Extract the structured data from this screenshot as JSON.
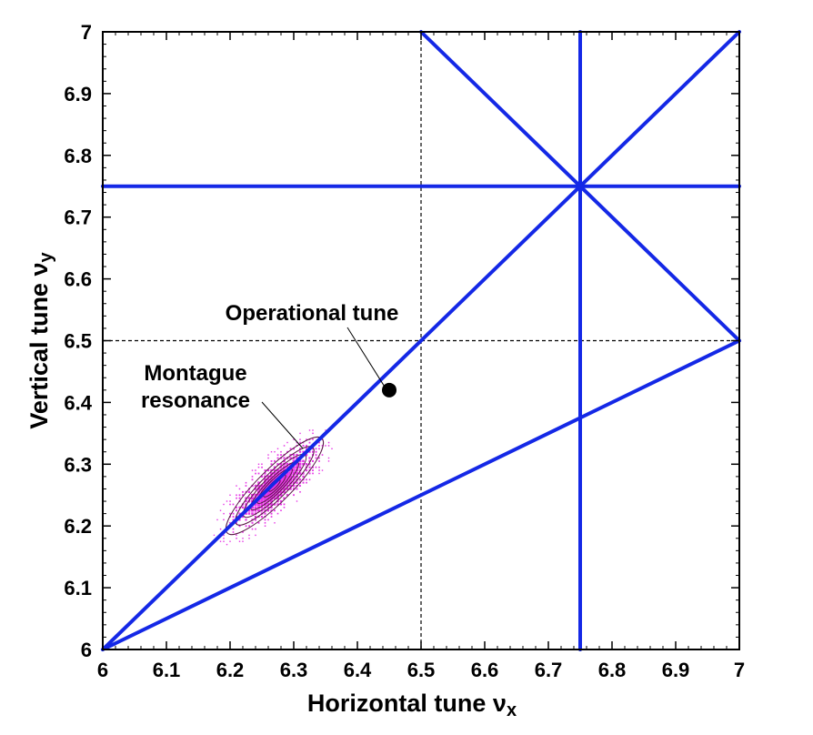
{
  "chart_data": {
    "type": "scatter",
    "title": "",
    "xlabel": "Horizontal tune ν",
    "xlabel_sub": "x",
    "ylabel": "Vertical tune ν",
    "ylabel_sub": "y",
    "xlim": [
      6,
      7
    ],
    "ylim": [
      6,
      7
    ],
    "xticks": [
      "6",
      "6.1",
      "6.2",
      "6.3",
      "6.4",
      "6.5",
      "6.6",
      "6.7",
      "6.8",
      "6.9",
      "7"
    ],
    "yticks": [
      "6",
      "6.1",
      "6.2",
      "6.3",
      "6.4",
      "6.5",
      "6.6",
      "6.7",
      "6.8",
      "6.9",
      "7"
    ],
    "grid": false,
    "colors": {
      "resonance": "#1428e6",
      "distribution": "#e633e6",
      "contour": "#5a1846",
      "dashed": "#000000"
    },
    "resonance_lines": [
      {
        "x": [
          6,
          7
        ],
        "y": [
          6,
          7
        ]
      },
      {
        "x": [
          6,
          7
        ],
        "y": [
          6,
          6.5
        ]
      },
      {
        "x": [
          6.5,
          7
        ],
        "y": [
          7,
          6.5
        ]
      },
      {
        "x": [
          6.75,
          6.75
        ],
        "y": [
          6,
          7
        ]
      },
      {
        "x": [
          6,
          7
        ],
        "y": [
          6.75,
          6.75
        ]
      }
    ],
    "dashed_lines": [
      {
        "x": [
          6.5,
          6.5
        ],
        "y": [
          6,
          7
        ]
      },
      {
        "x": [
          6,
          7
        ],
        "y": [
          6.5,
          6.5
        ]
      }
    ],
    "operational_point": {
      "x": 6.45,
      "y": 6.42
    },
    "distribution": {
      "center": [
        6.27,
        6.265
      ],
      "major_axis_deg": 45,
      "extent": [
        6.06,
        6.43
      ]
    },
    "annotations": [
      {
        "text": "Operational tune",
        "at": [
          6.45,
          6.42
        ]
      },
      {
        "text_lines": [
          "Montague",
          "resonance"
        ],
        "at": [
          6.3,
          6.3
        ]
      }
    ]
  }
}
